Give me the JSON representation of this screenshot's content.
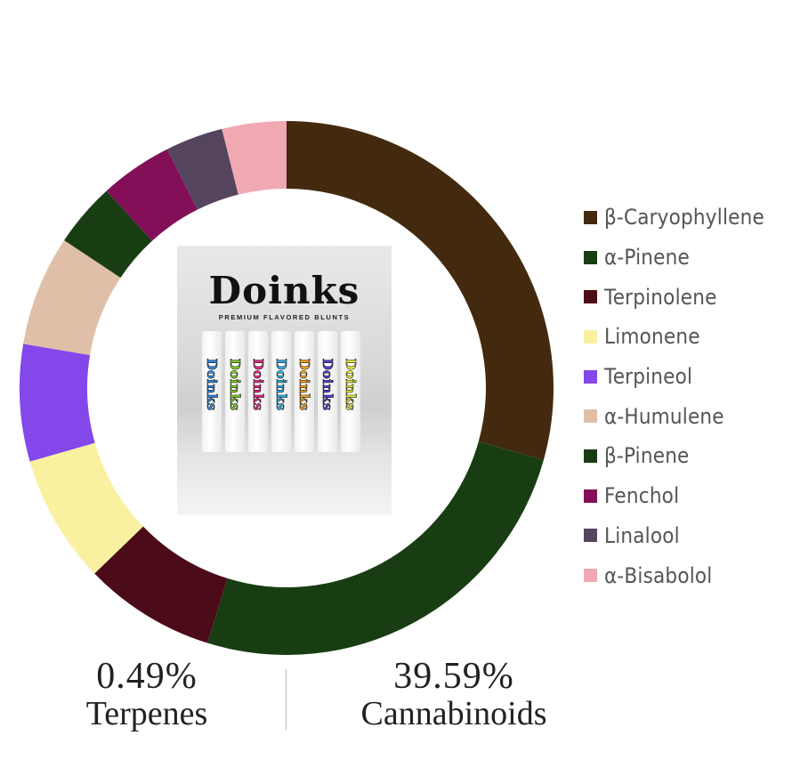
{
  "chart_data": {
    "type": "pie",
    "variant": "donut",
    "categories": [
      "β-Caryophyllene",
      "α-Pinene",
      "Terpinolene",
      "Limonene",
      "Terpineol",
      "α-Humulene",
      "β-Pinene",
      "Fenchol",
      "Linalool",
      "α-Bisabolol"
    ],
    "values": [
      29.4,
      25.5,
      8.0,
      7.8,
      7.1,
      6.7,
      3.9,
      4.4,
      3.5,
      3.9
    ],
    "colors": [
      "#432a0f",
      "#193d12",
      "#4b0b18",
      "#f9f1a0",
      "#8347ea",
      "#dfbfa7",
      "#193d12",
      "#820f57",
      "#54445e",
      "#f0a8b3"
    ],
    "legend_position": "right"
  },
  "center_image": {
    "logo": "Doinks",
    "tagline": "PREMIUM FLAVORED BLUNTS",
    "tube_colors": [
      "#2f8be6",
      "#7ed321",
      "#ec2a8a",
      "#2fb2ee",
      "#f5a623",
      "#5b3fd1",
      "#e8f03a"
    ]
  },
  "stats": {
    "terpenes": {
      "value": "0.49%",
      "label": "Terpenes"
    },
    "cannabinoids": {
      "value": "39.59%",
      "label": "Cannabinoids"
    }
  }
}
